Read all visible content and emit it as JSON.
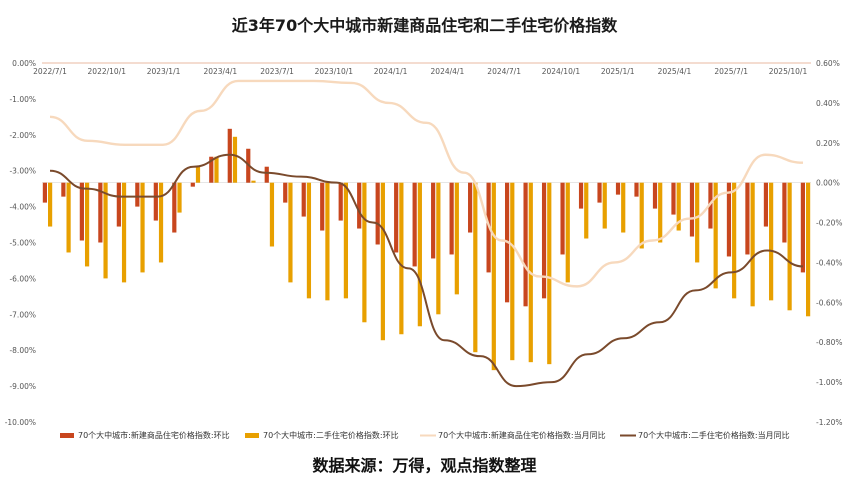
{
  "chart_data": {
    "type": "bar+line",
    "title": "近3年70个大中城市新建商品住宅和二手住宅价格指数",
    "source": "数据来源：万得，观点指数整理",
    "left_axis": {
      "ylim": [
        -10,
        0
      ],
      "ticks": [
        0,
        -1,
        -2,
        -3,
        -4,
        -5,
        -6,
        -7,
        -8,
        -9,
        -10
      ],
      "tick_labels": [
        "0.00%",
        "-1.00%",
        "-2.00%",
        "-3.00%",
        "-4.00%",
        "-5.00%",
        "-6.00%",
        "-7.00%",
        "-8.00%",
        "-9.00%",
        "-10.00%"
      ]
    },
    "right_axis": {
      "ylim": [
        -1.2,
        0.6
      ],
      "ticks": [
        0.6,
        0.4,
        0.2,
        0,
        -0.2,
        -0.4,
        -0.6,
        -0.8,
        -1.0,
        -1.2
      ],
      "tick_labels": [
        "0.60%",
        "0.40%",
        "0.20%",
        "0.00%",
        "-0.20%",
        "-0.40%",
        "-0.60%",
        "-0.80%",
        "-1.00%",
        "-1.20%"
      ]
    },
    "x_tick_labels": [
      "2022/7/1",
      "2022/10/1",
      "2023/1/1",
      "2023/4/1",
      "2023/7/1",
      "2023/10/1",
      "2024/1/1",
      "2024/4/1",
      "2024/7/1",
      "2024/10/1",
      "2025/1/1",
      "2025/4/1",
      "2025/7/1",
      "2025/10/1"
    ],
    "series": [
      {
        "name": "70个大中城市:新建商品住宅价格指数:环比",
        "type": "bar",
        "axis": "right",
        "color": "#c8461e",
        "values": [
          -0.1,
          -0.07,
          -0.29,
          -0.3,
          -0.22,
          -0.12,
          -0.19,
          -0.25,
          -0.02,
          0.13,
          0.27,
          0.17,
          0.08,
          -0.1,
          -0.17,
          -0.24,
          -0.19,
          -0.23,
          -0.31,
          -0.35,
          -0.42,
          -0.38,
          -0.36,
          -0.25,
          -0.45,
          -0.6,
          -0.62,
          -0.58,
          -0.36,
          -0.13,
          -0.1,
          -0.06,
          -0.07,
          -0.13,
          -0.16,
          -0.27,
          -0.23,
          -0.37,
          -0.36,
          -0.22,
          -0.3,
          -0.45
        ]
      },
      {
        "name": "70个大中城市:二手住宅价格指数:环比",
        "type": "bar",
        "axis": "right",
        "color": "#e8a000",
        "values": [
          -0.22,
          -0.35,
          -0.42,
          -0.48,
          -0.5,
          -0.45,
          -0.4,
          -0.15,
          0.08,
          0.13,
          0.23,
          0.01,
          -0.32,
          -0.5,
          -0.58,
          -0.59,
          -0.58,
          -0.7,
          -0.79,
          -0.76,
          -0.72,
          -0.66,
          -0.56,
          -0.85,
          -0.94,
          -0.89,
          -0.9,
          -0.91,
          -0.5,
          -0.28,
          -0.23,
          -0.25,
          -0.33,
          -0.3,
          -0.24,
          -0.4,
          -0.53,
          -0.58,
          -0.62,
          -0.59,
          -0.64,
          -0.67
        ]
      },
      {
        "name": "70个大中城市:新建商品住宅价格指数:当月同比",
        "type": "line",
        "axis": "right",
        "color": "#f7d9bd",
        "values": [
          0.33,
          0.21,
          0.19,
          0.19,
          0.36,
          0.51,
          0.51,
          0.51,
          0.5,
          0.4,
          0.3,
          0.05,
          -0.29,
          -0.47,
          -0.52,
          -0.4,
          -0.29,
          -0.18,
          -0.05,
          0.14,
          0.1
        ]
      },
      {
        "name": "70个大中城市:二手住宅价格指数:当月同比",
        "type": "line",
        "axis": "right",
        "color": "#7a4a2c",
        "values": [
          0.06,
          -0.03,
          -0.07,
          -0.07,
          0.08,
          0.14,
          0.05,
          0.03,
          0.0,
          -0.2,
          -0.43,
          -0.79,
          -0.87,
          -1.02,
          -1.0,
          -0.86,
          -0.78,
          -0.7,
          -0.54,
          -0.45,
          -0.34,
          -0.42
        ]
      }
    ],
    "legend_position": "bottom",
    "grid": false
  }
}
